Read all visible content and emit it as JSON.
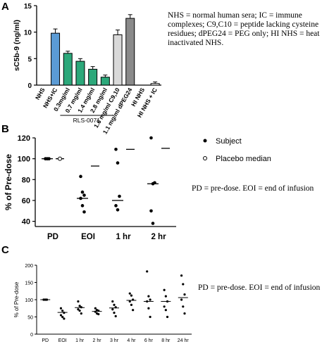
{
  "panels": {
    "a": {
      "label": "A"
    },
    "b": {
      "label": "B"
    },
    "c": {
      "label": "C"
    }
  },
  "notes": {
    "a": "NHS = normal human sera; IC = immune complexes; C9,C10 = peptide lacking cysteine residues; dPEG24 = PEG only;           HI NHS = heat inactivated NHS.",
    "b": "PD = pre-dose. EOI = end of infusion",
    "c": "PD = pre-dose. EOI = end of infusion"
  },
  "colors": {
    "blue": "#5b9bd5",
    "green": "#2ca87a",
    "light_gray": "#d9d9d9",
    "dark_gray": "#8a8a8a",
    "white": "#ffffff"
  },
  "chart_data": [
    {
      "type": "bar",
      "panel": "A",
      "ylabel": "sC5b-9 (ng/ml)",
      "ylim": [
        0,
        15
      ],
      "yticks": [
        0,
        5,
        10,
        15
      ],
      "categories": [
        "NHS",
        "NHS+IC",
        "0.3mg/ml",
        "0.7 mg/ml",
        "1.4 mg/ml",
        "2.8 mg/ml",
        "1.6 mg/ml C9,10",
        "1.1 mg/ml dPEG24",
        "HI NHS",
        "HI NHS + IC"
      ],
      "values": [
        0,
        9.8,
        6.0,
        4.5,
        3.0,
        1.5,
        9.5,
        12.6,
        0,
        0.3
      ],
      "errors": [
        0,
        0.8,
        0.4,
        0.5,
        0.5,
        0.4,
        0.9,
        0.7,
        0,
        0.3
      ],
      "bar_colors": [
        "white",
        "blue",
        "green",
        "green",
        "green",
        "green",
        "light_gray",
        "dark_gray",
        "white",
        "white"
      ],
      "group_label": "RLS-0071",
      "group_range": [
        2,
        5
      ]
    },
    {
      "type": "scatter",
      "panel": "B",
      "ylabel": "% of Pre-dose",
      "ylim": [
        35,
        120
      ],
      "yticks": [
        40,
        60,
        80,
        100,
        120
      ],
      "categories": [
        "PD",
        "EOI",
        "1 hr",
        "2 hr"
      ],
      "legend": [
        "Subject",
        "Placebo median"
      ],
      "subject": [
        [
          100,
          100,
          100,
          100,
          100,
          100
        ],
        [
          83,
          68,
          65,
          62,
          55,
          49
        ],
        [
          109,
          96,
          64,
          55,
          51
        ],
        [
          121,
          76,
          77,
          50,
          38
        ]
      ],
      "subject_median": [
        100,
        62,
        60,
        76
      ],
      "placebo_median": [
        100,
        93,
        109,
        110
      ]
    },
    {
      "type": "scatter",
      "panel": "C",
      "ylabel": "% of Pre-dose",
      "ylim": [
        0,
        200
      ],
      "yticks": [
        0,
        50,
        100,
        150,
        200
      ],
      "categories": [
        "PD",
        "EOI",
        "1 hr",
        "2 hr",
        "3 hr",
        "4 hr",
        "6 hr",
        "8 hr",
        "24 hr"
      ],
      "subject": [
        [
          100,
          100,
          100,
          100,
          100,
          100
        ],
        [
          75,
          68,
          62,
          55,
          50,
          45
        ],
        [
          95,
          82,
          78,
          72,
          68,
          60
        ],
        [
          75,
          70,
          68,
          65,
          60,
          58
        ],
        [
          95,
          85,
          78,
          72,
          62,
          52
        ],
        [
          118,
          112,
          100,
          95,
          85,
          70
        ],
        [
          182,
          110,
          100,
          95,
          75,
          50
        ],
        [
          128,
          110,
          95,
          80,
          70,
          50
        ],
        [
          170,
          145,
          115,
          100,
          80,
          60
        ]
      ],
      "median": [
        100,
        63,
        77,
        66,
        76,
        98,
        95,
        95,
        106
      ]
    }
  ]
}
